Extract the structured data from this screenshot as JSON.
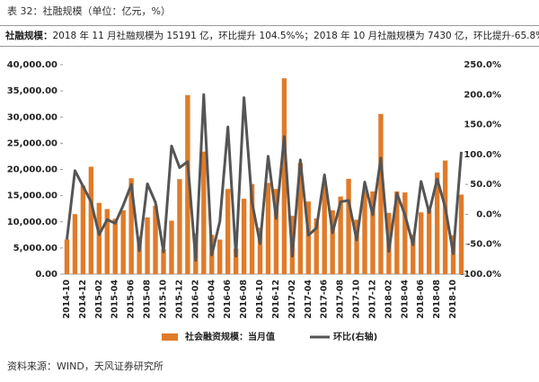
{
  "header": {
    "title": "表 32：社融规模（单位：亿元，%）"
  },
  "summary": {
    "lead": "社融规模：",
    "text": "2018 年 11 月社融规模为 15191 亿，环比提升 104.5%%；2018 年 10 月社融规模为 7430 亿，环比提升-65.8%。"
  },
  "source": "资料来源：WIND，天风证券研究所",
  "chart_data": {
    "type": "bar-line",
    "categories": [
      "2014-10",
      null,
      "2014-12",
      null,
      "2015-02",
      null,
      "2015-04",
      null,
      "2015-06",
      null,
      "2015-08",
      null,
      "2015-10",
      null,
      "2015-12",
      null,
      "2016-02",
      null,
      "2016-04",
      null,
      "2016-06",
      null,
      "2016-08",
      null,
      "2016-10",
      null,
      "2016-12",
      null,
      "2017-02",
      null,
      "2017-04",
      null,
      "2017-06",
      null,
      "2017-08",
      null,
      "2017-10",
      null,
      "2017-12",
      null,
      "2018-02",
      null,
      "2018-04",
      null,
      "2018-06",
      null,
      "2018-08",
      null,
      "2018-10",
      null
    ],
    "series": [
      {
        "name": "社会融资规模：当月值",
        "type": "bar",
        "color": "#e07b2a",
        "axis": "y",
        "values": [
          6627,
          11459,
          16898,
          20516,
          13609,
          12433,
          10582,
          12194,
          18324,
          7188,
          10837,
          13036,
          4767,
          10214,
          18151,
          34200,
          7802,
          23404,
          7510,
          6599,
          16263,
          4879,
          14397,
          17215,
          8861,
          17429,
          16266,
          37400,
          11131,
          21228,
          13871,
          10654,
          17725,
          12200,
          14818,
          18200,
          10400,
          16000,
          15800,
          30600,
          11700,
          15800,
          15600,
          7600,
          11800,
          12200,
          19400,
          21700,
          7430,
          15191
        ]
      },
      {
        "name": "环比(右轴)",
        "type": "line",
        "color": "#555555",
        "axis": "y2",
        "values": [
          -42,
          73,
          47,
          21,
          -34,
          -9,
          -15,
          15,
          50,
          -61,
          51,
          20,
          -63,
          114,
          78,
          88,
          -77,
          200,
          -68,
          -12,
          146,
          -70,
          195,
          20,
          -49,
          97,
          -7,
          130,
          -70,
          91,
          -35,
          -23,
          66,
          -31,
          21,
          23,
          -43,
          54,
          -1,
          94,
          -62,
          35,
          -1,
          -51,
          55,
          3,
          59,
          12,
          -65.8,
          104.5
        ]
      }
    ],
    "ylim": [
      0,
      40000
    ],
    "yticks": [
      {
        "value": 0,
        "label": "0.00"
      },
      {
        "value": 5000,
        "label": "5,000.00"
      },
      {
        "value": 10000,
        "label": "10,000.00"
      },
      {
        "value": 15000,
        "label": "15,000.00"
      },
      {
        "value": 20000,
        "label": "20,000.00"
      },
      {
        "value": 25000,
        "label": "25,000.00"
      },
      {
        "value": 30000,
        "label": "30,000.00"
      },
      {
        "value": 35000,
        "label": "35,000.00"
      },
      {
        "value": 40000,
        "label": "40,000.00"
      }
    ],
    "y2lim": [
      -100,
      250
    ],
    "y2ticks": [
      {
        "value": -100,
        "label": "-100.0%"
      },
      {
        "value": -50,
        "label": "-50.0%"
      },
      {
        "value": 0,
        "label": "0.0%"
      },
      {
        "value": 50,
        "label": "50.0%"
      },
      {
        "value": 100,
        "label": "100.0%"
      },
      {
        "value": 150,
        "label": "150.0%"
      },
      {
        "value": 200,
        "label": "200.0%"
      },
      {
        "value": 250,
        "label": "250.0%"
      }
    ],
    "grid": false
  }
}
